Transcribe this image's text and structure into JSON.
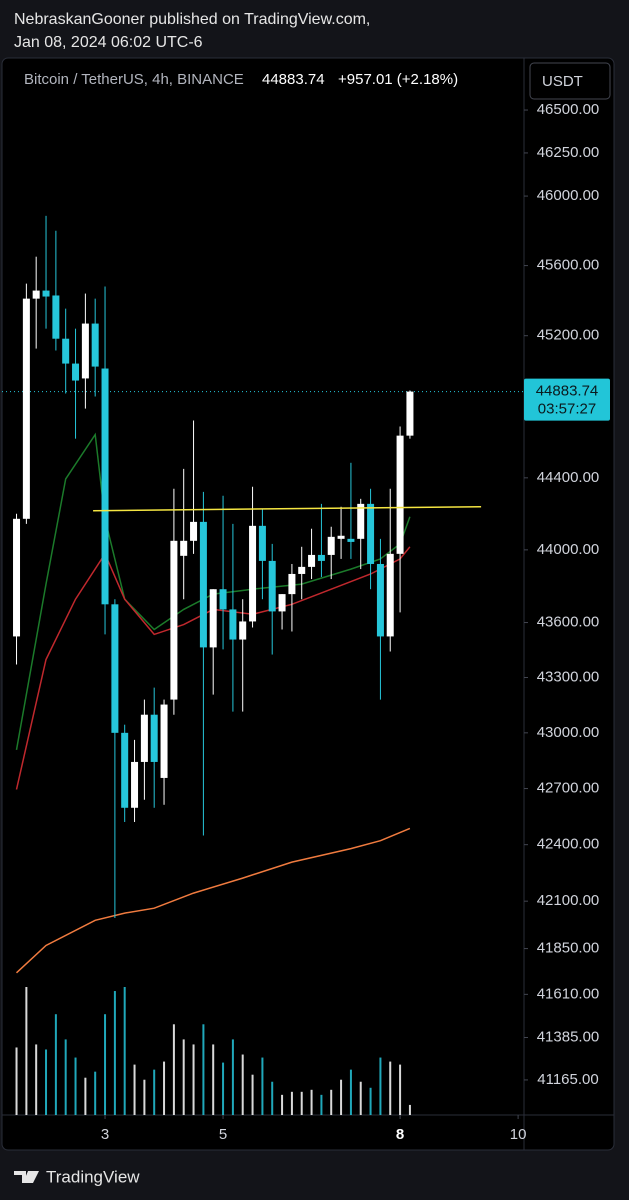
{
  "header": {
    "author_line": "NebraskanGooner published on TradingView.com,",
    "date": "Jan 08, 2024 06:02 UTC-6"
  },
  "footer": {
    "brand": "TradingView"
  },
  "chart_data": {
    "type": "candlestick",
    "title": "Bitcoin / TetherUS, 4h, BINANCE",
    "last_price": 44883.74,
    "change": "+957.01 (+2.18%)",
    "currency": "USDT",
    "countdown": "03:57:27",
    "log_scale": true,
    "up_color": "#ffffff",
    "down_color": "#26c6da",
    "x": [
      1.5,
      1.667,
      1.833,
      2,
      2.167,
      2.333,
      2.5,
      2.667,
      2.833,
      3,
      3.167,
      3.333,
      3.5,
      3.667,
      3.833,
      4,
      4.167,
      4.333,
      4.5,
      4.667,
      4.833,
      5,
      5.167,
      5.333,
      5.5,
      5.667,
      5.833,
      6,
      6.167,
      6.333,
      6.5,
      6.667,
      6.833,
      7,
      7.167,
      7.333,
      7.5,
      7.667,
      7.833,
      8,
      8.167
    ],
    "open": [
      43524,
      44172,
      45411,
      45457,
      45429,
      45183,
      45042,
      44958,
      45269,
      45014,
      43700,
      43000,
      42597,
      42843,
      43098,
      42757,
      43180,
      43967,
      44050,
      44155,
      43464,
      43783,
      43672,
      43507,
      43606,
      44133,
      43939,
      43661,
      43756,
      43867,
      43906,
      43972,
      43972,
      44061,
      44061,
      44061,
      44255,
      43922,
      43524,
      43978,
      44636
    ],
    "high": [
      44200,
      45497,
      45651,
      45886,
      45800,
      45354,
      45240,
      45440,
      45411,
      45480,
      43728,
      43044,
      42962,
      43180,
      43245,
      43180,
      44339,
      44450,
      44721,
      44322,
      43783,
      44300,
      44144,
      43728,
      44350,
      44228,
      44033,
      43756,
      43922,
      44017,
      44117,
      44255,
      44128,
      44239,
      44484,
      44283,
      44339,
      44061,
      44339,
      44687,
      44890
    ],
    "low": [
      43371,
      44144,
      45127,
      45240,
      45116,
      44873,
      44619,
      44788,
      44856,
      43535,
      42011,
      42521,
      42521,
      42640,
      42597,
      42613,
      43098,
      43728,
      43978,
      42449,
      43207,
      43453,
      43115,
      43115,
      43573,
      43728,
      43425,
      43562,
      43551,
      43728,
      43839,
      43850,
      43839,
      43950,
      43950,
      43894,
      43783,
      43180,
      43442,
      43656,
      44619
    ],
    "close": [
      44172,
      45411,
      45457,
      45423,
      45183,
      45042,
      44946,
      45269,
      45025,
      43700,
      43000,
      42597,
      42843,
      43098,
      42843,
      43153,
      44050,
      44050,
      44155,
      43464,
      43783,
      43672,
      43507,
      43606,
      44133,
      43939,
      43661,
      43756,
      43867,
      43906,
      43972,
      43939,
      44072,
      44078,
      44044,
      44255,
      43922,
      43524,
      43978,
      44636,
      44883.74
    ],
    "volume": [
      67,
      127,
      70,
      65,
      100,
      75,
      57,
      37,
      43,
      100,
      123,
      127,
      50,
      35,
      45,
      53,
      90,
      75,
      70,
      90,
      70,
      52,
      75,
      60,
      40,
      57,
      33,
      20,
      23,
      23,
      25,
      20,
      25,
      35,
      45,
      33,
      27,
      57,
      53,
      50,
      10
    ],
    "moving_averages": [
      {
        "color": "#1b7a2a",
        "x": [
          1.5,
          2,
          2.333,
          2.833,
          3,
          3.333,
          3.833,
          4.333,
          4.833,
          5.5,
          6.333,
          7.167,
          7.667,
          8,
          8.167
        ],
        "values": [
          42908,
          43811,
          44394,
          44642,
          44172,
          43728,
          43562,
          43672,
          43756,
          43783,
          43811,
          43894,
          43950,
          44033,
          44183
        ]
      },
      {
        "color": "#c0282d",
        "x": [
          1.5,
          2,
          2.5,
          3,
          3.333,
          3.833,
          4.333,
          4.833,
          5.5,
          6.167,
          6.833,
          7.5,
          8,
          8.167
        ],
        "values": [
          42695,
          43398,
          43728,
          43978,
          43728,
          43535,
          43589,
          43672,
          43645,
          43700,
          43783,
          43867,
          43950,
          44017
        ]
      },
      {
        "color": "#f07b3f",
        "x": [
          1.5,
          2,
          2.833,
          3.333,
          3.833,
          4.5,
          5.333,
          6.167,
          7.167,
          7.667,
          8.167
        ],
        "values": [
          41723,
          41866,
          41999,
          42037,
          42063,
          42143,
          42222,
          42307,
          42379,
          42421,
          42487
        ]
      }
    ],
    "trendline": {
      "color": "#f5e642",
      "x": [
        2.797,
        9.373
      ],
      "values": [
        44217,
        44239
      ]
    },
    "xlim": [
      1.22,
      10.1
    ],
    "xticks": [
      3,
      5,
      8,
      10
    ],
    "ylim": [
      40984,
      46805
    ],
    "yticks": [
      {
        "value": 46500,
        "label": "46500.00"
      },
      {
        "value": 46250,
        "label": "46250.00"
      },
      {
        "value": 46000,
        "label": "46000.00"
      },
      {
        "value": 45600,
        "label": "45600.00"
      },
      {
        "value": 45200,
        "label": "45200.00"
      },
      {
        "value": 44400,
        "label": "44400.00"
      },
      {
        "value": 44000,
        "label": "44000.00"
      },
      {
        "value": 43600,
        "label": "43600.00"
      },
      {
        "value": 43300,
        "label": "43300.00"
      },
      {
        "value": 43000,
        "label": "43000.00"
      },
      {
        "value": 42700,
        "label": "42700.00"
      },
      {
        "value": 42400,
        "label": "42400.00"
      },
      {
        "value": 42100,
        "label": "42100.00"
      },
      {
        "value": 41850,
        "label": "41850.00"
      },
      {
        "value": 41610,
        "label": "41610.00"
      },
      {
        "value": 41385,
        "label": "41385.00"
      },
      {
        "value": 41165,
        "label": "41165.00"
      }
    ]
  }
}
